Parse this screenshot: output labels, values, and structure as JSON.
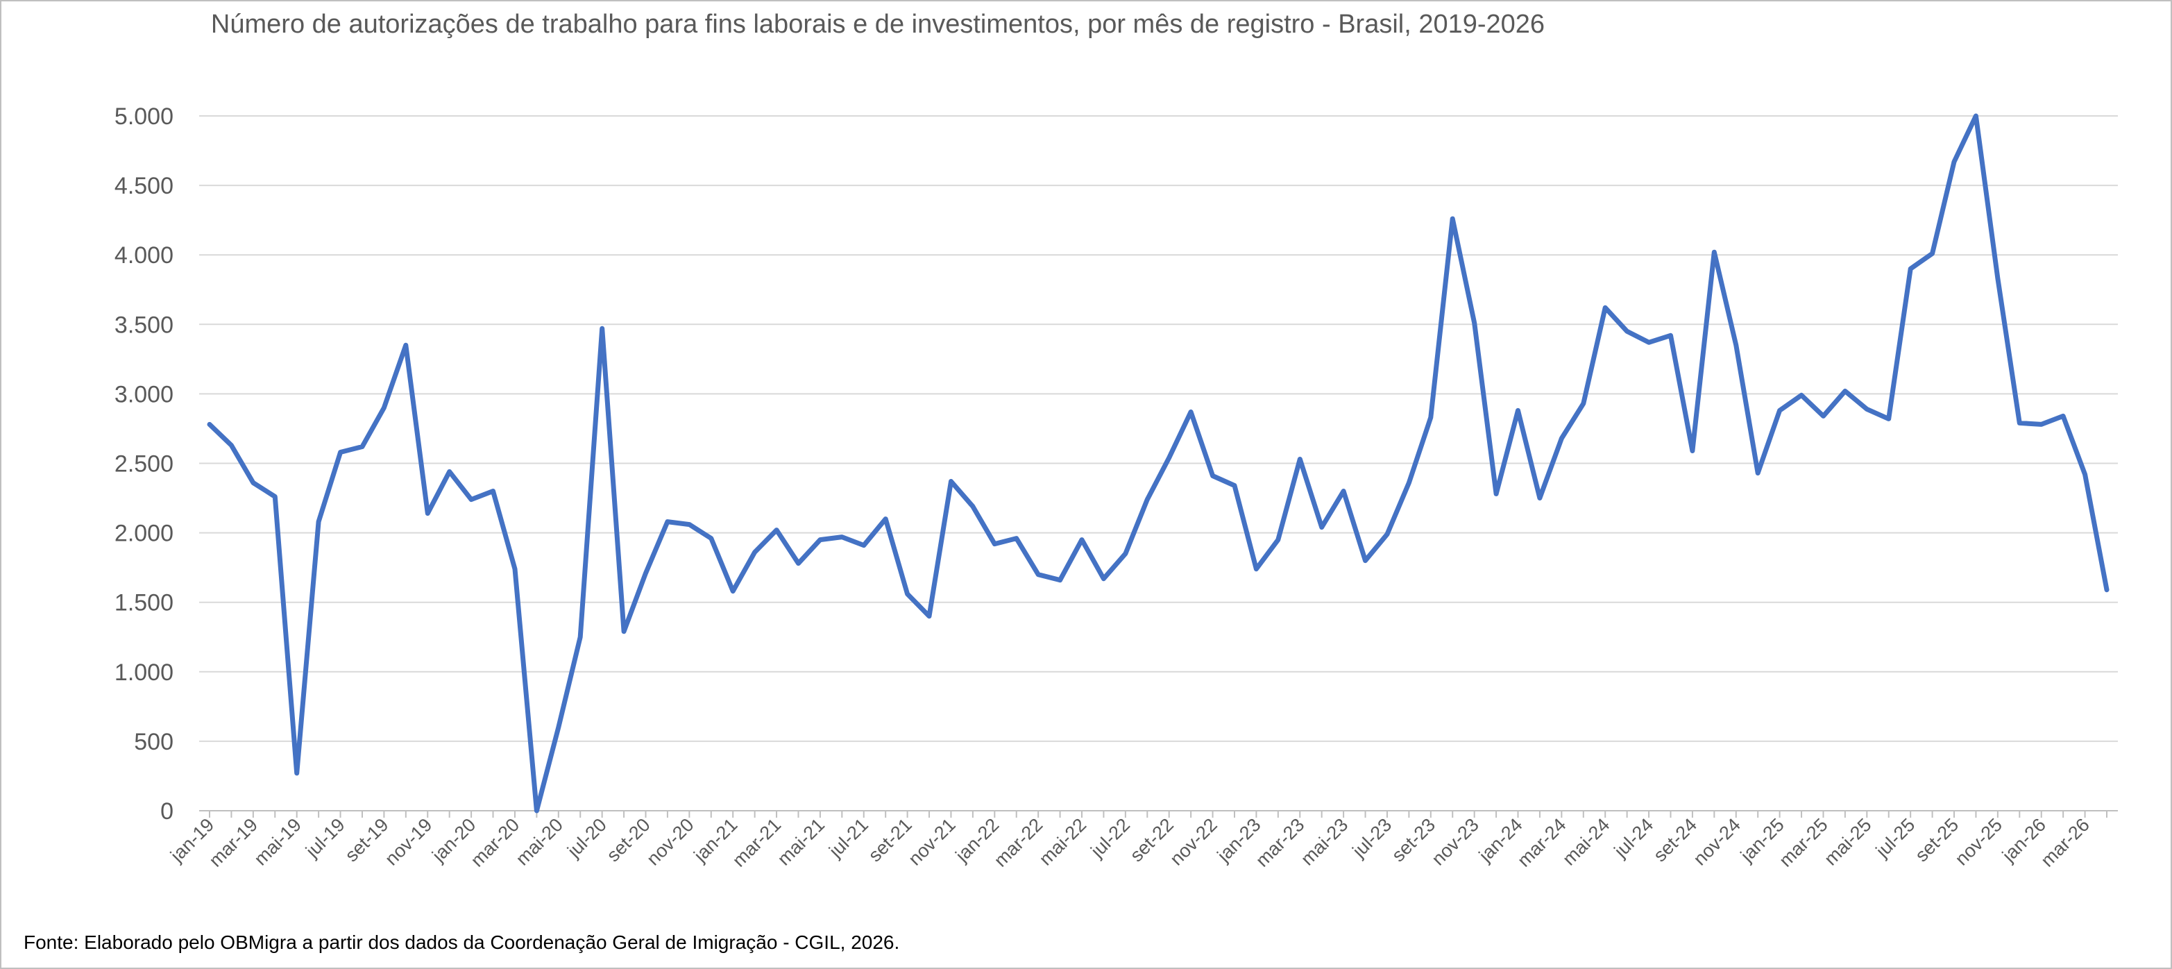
{
  "title": "Número de autorizações de trabalho para fins laborais e de investimentos, por mês de registro - Brasil, 2019-2026",
  "source": "Fonte: Elaborado pelo OBMigra a partir dos dados da Coordenação Geral de Imigração - CGIL, 2026.",
  "chart_data": {
    "type": "line",
    "title": "Número de autorizações de trabalho para fins laborais e de investimentos, por mês de registro - Brasil, 2019-2026",
    "xlabel": "",
    "ylabel": "",
    "ylim": [
      0,
      5000
    ],
    "yticks": [
      0,
      500,
      1000,
      1500,
      2000,
      2500,
      3000,
      3500,
      4000,
      4500,
      5000
    ],
    "ytick_labels": [
      "0",
      "500",
      "1.000",
      "1.500",
      "2.000",
      "2.500",
      "3.000",
      "3.500",
      "4.000",
      "4.500",
      "5.000"
    ],
    "grid": "horizontal",
    "legend": "none",
    "line_color": "#4472c4",
    "x_labels_every": 2,
    "categories": [
      "jan-19",
      "fev-19",
      "mar-19",
      "abr-19",
      "mai-19",
      "jun-19",
      "jul-19",
      "ago-19",
      "set-19",
      "out-19",
      "nov-19",
      "dez-19",
      "jan-20",
      "fev-20",
      "mar-20",
      "abr-20",
      "mai-20",
      "jun-20",
      "jul-20",
      "ago-20",
      "set-20",
      "out-20",
      "nov-20",
      "dez-20",
      "jan-21",
      "fev-21",
      "mar-21",
      "abr-21",
      "mai-21",
      "jun-21",
      "jul-21",
      "ago-21",
      "set-21",
      "out-21",
      "nov-21",
      "dez-21",
      "jan-22",
      "fev-22",
      "mar-22",
      "abr-22",
      "mai-22",
      "jun-22",
      "jul-22",
      "ago-22",
      "set-22",
      "out-22",
      "nov-22",
      "dez-22",
      "jan-23",
      "fev-23",
      "mar-23",
      "abr-23",
      "mai-23",
      "jun-23",
      "jul-23",
      "ago-23",
      "set-23",
      "out-23",
      "nov-23",
      "dez-23",
      "jan-24",
      "fev-24",
      "mar-24",
      "abr-24",
      "mai-24",
      "jun-24",
      "jul-24",
      "ago-24",
      "set-24",
      "out-24",
      "nov-24",
      "dez-24",
      "jan-25",
      "fev-25",
      "mar-25",
      "abr-25",
      "mai-25",
      "jun-25",
      "jul-25",
      "ago-25",
      "set-25",
      "out-25",
      "nov-25",
      "dez-25",
      "jan-26",
      "fev-26",
      "mar-26",
      "abr-26"
    ],
    "series": [
      {
        "values": [
          2780,
          2630,
          2360,
          2260,
          270,
          2080,
          2580,
          2620,
          2900,
          3350,
          2140,
          2440,
          2240,
          2300,
          1740,
          0,
          600,
          1250,
          3470,
          1290,
          1710,
          2080,
          2060,
          1960,
          1580,
          1860,
          2020,
          1780,
          1950,
          1970,
          1910,
          2100,
          1560,
          1400,
          2370,
          2190,
          1920,
          1960,
          1700,
          1660,
          1950,
          1670,
          1850,
          2240,
          2540,
          2870,
          2410,
          2340,
          1740,
          1950,
          2530,
          2040,
          2300,
          1800,
          1990,
          2360,
          2830,
          4260,
          3510,
          2280,
          2880,
          2250,
          2680,
          2930,
          3620,
          3450,
          3370,
          3420,
          2590,
          4020,
          3350,
          2430,
          2880,
          2990,
          2840,
          3020,
          2890,
          2820,
          3900,
          4010,
          4670,
          5000,
          3830,
          2790,
          2780,
          2840,
          2420,
          1590
        ]
      }
    ]
  }
}
